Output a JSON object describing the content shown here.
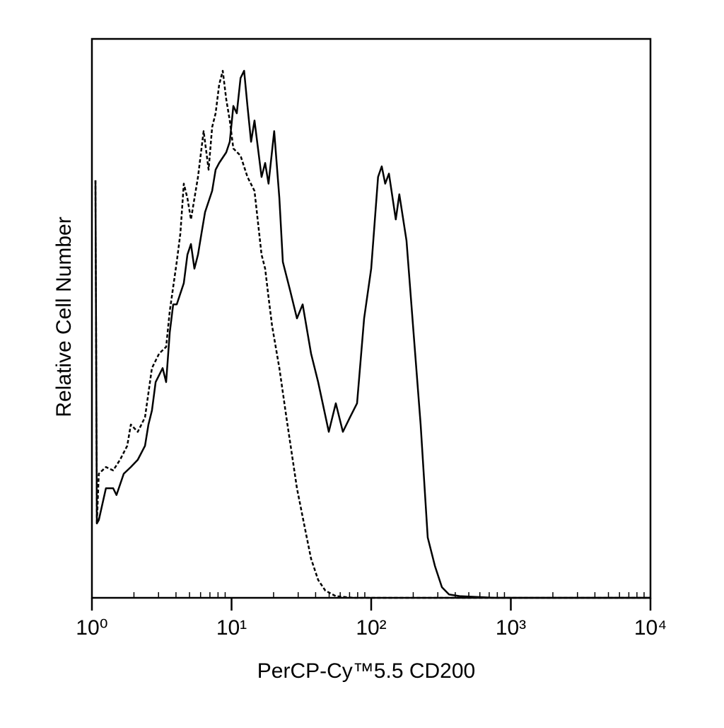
{
  "chart_data": {
    "type": "line",
    "xlabel": "PerCP-Cy™5.5 CD200",
    "ylabel": "Relative Cell Number",
    "xscale": "log",
    "xlim": [
      1,
      10000
    ],
    "ylim": [
      0,
      100
    ],
    "xticks": [
      {
        "value": 1,
        "label": "10⁰"
      },
      {
        "value": 10,
        "label": "10¹"
      },
      {
        "value": 100,
        "label": "10²"
      },
      {
        "value": 1000,
        "label": "10³"
      },
      {
        "value": 10000,
        "label": "10⁴"
      }
    ],
    "xminor_ticks": [
      2,
      3,
      4,
      5,
      6,
      7,
      8,
      9,
      20,
      30,
      40,
      50,
      60,
      70,
      80,
      90,
      200,
      300,
      400,
      500,
      600,
      700,
      800,
      900,
      2000,
      3000,
      4000,
      5000,
      6000,
      7000,
      8000,
      9000
    ],
    "series": [
      {
        "color": "#000000",
        "dash": "solid",
        "x": [
          1.06,
          1.085,
          1.12,
          1.26,
          1.42,
          1.5,
          1.69,
          1.9,
          2.13,
          2.4,
          2.54,
          2.69,
          2.86,
          3.21,
          3.4,
          3.61,
          3.82,
          4.05,
          4.55,
          4.83,
          5.12,
          5.42,
          5.75,
          6.09,
          6.46,
          7.26,
          7.69,
          8.15,
          9.16,
          9.71,
          10.3,
          10.9,
          11.6,
          12.3,
          13.0,
          13.8,
          14.6,
          16.4,
          17.4,
          18.4,
          20.2,
          22.0,
          23.3,
          26.2,
          29.4,
          32.3,
          37.1,
          41.7,
          49.7,
          55.8,
          62.7,
          70.5,
          79.2,
          89.0,
          100,
          112,
          119,
          126,
          134,
          150,
          159,
          179,
          201,
          226,
          254,
          286,
          321,
          361,
          430,
          769,
          2470,
          10000
        ],
        "values": [
          74.7,
          13.3,
          13.9,
          19.6,
          19.6,
          18.4,
          22.2,
          23.4,
          24.7,
          27.2,
          31.0,
          33.5,
          38.6,
          41.1,
          38.6,
          47.5,
          52.5,
          52.5,
          56.3,
          61.4,
          63.3,
          58.9,
          61.4,
          65.2,
          69.0,
          72.8,
          76.6,
          77.8,
          79.7,
          81.6,
          88.0,
          86.7,
          93.0,
          94.3,
          88.0,
          81.6,
          85.4,
          75.3,
          77.8,
          74.1,
          83.5,
          71.5,
          60.1,
          55.1,
          50.0,
          52.5,
          43.7,
          38.6,
          29.7,
          34.8,
          29.7,
          32.3,
          34.8,
          50.0,
          58.9,
          75.3,
          77.2,
          74.1,
          75.9,
          67.7,
          72.2,
          63.9,
          47.5,
          31.0,
          10.8,
          5.7,
          1.9,
          0.6,
          0.3,
          0,
          0,
          0
        ]
      },
      {
        "color": "#000000",
        "dash": "dashed",
        "x": [
          1.06,
          1.085,
          1.12,
          1.26,
          1.42,
          1.59,
          1.79,
          1.9,
          2.13,
          2.4,
          2.69,
          3.03,
          3.4,
          3.61,
          4.05,
          4.3,
          4.55,
          4.83,
          5.12,
          5.75,
          6.31,
          6.85,
          7.26,
          7.69,
          8.15,
          8.65,
          9.16,
          9.71,
          10.3,
          11.6,
          13.0,
          14.6,
          16.4,
          17.4,
          18.4,
          19.5,
          22.0,
          24.7,
          29.4,
          33.0,
          37.1,
          41.7,
          46.9,
          55.8,
          74.7,
          254,
          10000
        ],
        "values": [
          74.7,
          13.3,
          22.2,
          23.4,
          22.8,
          24.7,
          27.2,
          31.0,
          29.7,
          32.3,
          41.1,
          43.7,
          44.9,
          51.3,
          60.1,
          65.2,
          74.1,
          71.5,
          67.7,
          75.3,
          83.5,
          76.6,
          84.2,
          86.7,
          91.8,
          94.3,
          89.2,
          85.4,
          80.4,
          79.1,
          75.3,
          72.8,
          61.4,
          58.9,
          53.8,
          48.7,
          41.1,
          32.3,
          19.6,
          13.3,
          7.0,
          3.2,
          1.3,
          0.3,
          0,
          0,
          0
        ]
      }
    ]
  }
}
